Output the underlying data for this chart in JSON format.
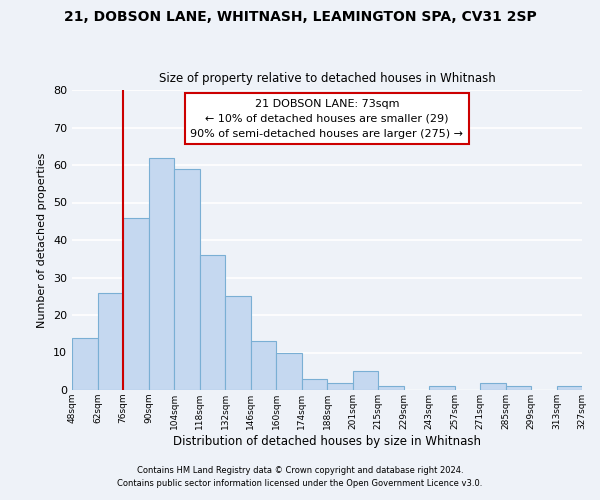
{
  "title": "21, DOBSON LANE, WHITNASH, LEAMINGTON SPA, CV31 2SP",
  "subtitle": "Size of property relative to detached houses in Whitnash",
  "xlabel": "Distribution of detached houses by size in Whitnash",
  "ylabel": "Number of detached properties",
  "bar_values": [
    14,
    26,
    46,
    62,
    59,
    36,
    25,
    13,
    10,
    3,
    2,
    5,
    1,
    0,
    1,
    0,
    2,
    1,
    0,
    1
  ],
  "categories": [
    "48sqm",
    "62sqm",
    "76sqm",
    "90sqm",
    "104sqm",
    "118sqm",
    "132sqm",
    "146sqm",
    "160sqm",
    "174sqm",
    "188sqm",
    "201sqm",
    "215sqm",
    "229sqm",
    "243sqm",
    "257sqm",
    "271sqm",
    "285sqm",
    "299sqm",
    "313sqm",
    "327sqm"
  ],
  "bar_color": "#c5d8f0",
  "bar_edge_color": "#7aafd4",
  "property_line_color": "#cc0000",
  "annotation_title": "21 DOBSON LANE: 73sqm",
  "annotation_line1": "← 10% of detached houses are smaller (29)",
  "annotation_line2": "90% of semi-detached houses are larger (275) →",
  "annotation_box_color": "#ffffff",
  "annotation_border_color": "#cc0000",
  "ylim": [
    0,
    80
  ],
  "yticks": [
    0,
    10,
    20,
    30,
    40,
    50,
    60,
    70,
    80
  ],
  "footer1": "Contains HM Land Registry data © Crown copyright and database right 2024.",
  "footer2": "Contains public sector information licensed under the Open Government Licence v3.0.",
  "bg_color": "#eef2f8",
  "grid_color": "#ffffff"
}
